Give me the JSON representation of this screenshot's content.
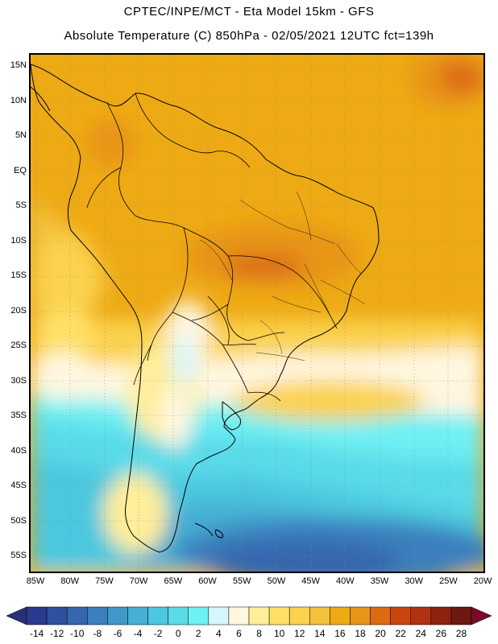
{
  "header": {
    "line1": "CPTEC/INPE/MCT -  Eta Model 15km - GFS",
    "line2": "Absolute Temperature (C) 850hPa - 02/05/2021 12UTC fct=139h"
  },
  "map": {
    "lat_labels": [
      "15N",
      "10N",
      "5N",
      "EQ",
      "5S",
      "10S",
      "15S",
      "20S",
      "25S",
      "30S",
      "35S",
      "40S",
      "45S",
      "50S",
      "55S"
    ],
    "lon_labels": [
      "85W",
      "80W",
      "75W",
      "70W",
      "65W",
      "60W",
      "55W",
      "50W",
      "45W",
      "40W",
      "35W",
      "30W",
      "25W",
      "20W"
    ]
  },
  "legend": {
    "labels": [
      "-14",
      "-12",
      "-10",
      "-8",
      "-6",
      "-4",
      "-2",
      "0",
      "2",
      "4",
      "6",
      "8",
      "10",
      "12",
      "14",
      "16",
      "18",
      "20",
      "22",
      "24",
      "26",
      "28"
    ],
    "colors": [
      "#2a3b8f",
      "#2f4f9f",
      "#3566ae",
      "#3b7fbd",
      "#3f98c9",
      "#45afd4",
      "#4cc7df",
      "#5adbe8",
      "#6ff0f4",
      "#d6f6fb",
      "#fff7e0",
      "#ffee99",
      "#ffe066",
      "#fbd24e",
      "#f3c13c",
      "#eeaa14",
      "#e89416",
      "#dc6a12",
      "#c9450f",
      "#b03210",
      "#8e2210",
      "#6e1810"
    ],
    "under_color": "#2a2f7a",
    "over_color": "#7a0a2a"
  }
}
